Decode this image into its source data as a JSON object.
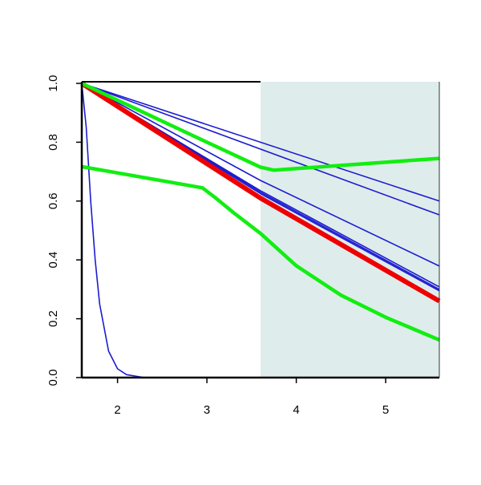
{
  "chart_data": {
    "type": "line",
    "xlim": [
      1.6,
      5.6
    ],
    "ylim": [
      0,
      1
    ],
    "xticks": [
      2,
      3,
      4,
      5
    ],
    "yticks": [
      {
        "value": 0,
        "label": "0.0"
      },
      0.2,
      0.4,
      0.6,
      0.8,
      {
        "value": 1,
        "label": "1.0"
      }
    ],
    "shaded_region": {
      "xlim": [
        3.6,
        5.6
      ],
      "color": "#dfecec"
    },
    "series": [
      {
        "color": "#1c1cd0",
        "line_width": 1.6,
        "x": [
          1.6,
          5.6
        ],
        "values": [
          1,
          0.6
        ]
      },
      {
        "color": "#1c1cd0",
        "line_width": 1.6,
        "x": [
          1.6,
          5.6
        ],
        "values": [
          1,
          0.553
        ]
      },
      {
        "color": "#1c1cd0",
        "line_width": 1.6,
        "x": [
          1.6,
          3.6,
          5.6
        ],
        "values": [
          1,
          0.67,
          0.379
        ]
      },
      {
        "color": "#1c1cd0",
        "line_width": 1.6,
        "x": [
          1.6,
          3.6,
          5.6
        ],
        "values": [
          1,
          0.635,
          0.308
        ]
      },
      {
        "color": "#1c1cd0",
        "line_width": 1.6,
        "x": [
          1.6,
          3.6,
          5.6
        ],
        "values": [
          1,
          0.63,
          0.3
        ]
      },
      {
        "color": "#1c1cd0",
        "line_width": 1.6,
        "x": [
          1.6,
          3.6,
          5.6
        ],
        "values": [
          1,
          0.625,
          0.295
        ]
      },
      {
        "color": "#1c1cd0",
        "line_width": 1.6,
        "x": [
          1.6,
          1.65,
          1.7,
          1.75,
          1.8,
          1.9,
          2.0,
          2.1,
          2.3,
          5.6
        ],
        "values": [
          1,
          0.85,
          0.6,
          0.4,
          0.25,
          0.09,
          0.03,
          0.01,
          0,
          0
        ]
      },
      {
        "color": "#ee0000",
        "line_width": 6,
        "x": [
          1.6,
          3.6,
          5.6
        ],
        "values": [
          1,
          0.61,
          0.26
        ]
      },
      {
        "color": "#11ee11",
        "line_width": 4.5,
        "x": [
          1.6,
          2.3,
          3.0,
          3.6,
          3.75,
          5.6
        ],
        "values": [
          1,
          0.9,
          0.8,
          0.715,
          0.705,
          0.745
        ]
      },
      {
        "color": "#11ee11",
        "line_width": 4.5,
        "x": [
          1.6,
          2.95,
          3.1,
          3.3,
          3.6,
          4.0,
          4.5,
          5.0,
          5.6
        ],
        "values": [
          0.717,
          0.645,
          0.61,
          0.56,
          0.49,
          0.38,
          0.28,
          0.205,
          0.128
        ]
      }
    ]
  }
}
